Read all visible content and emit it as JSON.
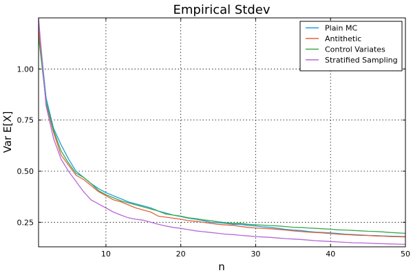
{
  "chart_data": {
    "type": "line",
    "title": "Empirical Stdev",
    "xlabel": "n",
    "ylabel": "Var E[X]",
    "xlim": [
      1,
      50
    ],
    "ylim": [
      0.13,
      1.25
    ],
    "xticks": [
      10,
      20,
      30,
      40,
      50
    ],
    "yticks": [
      0.25,
      0.5,
      0.75,
      1.0
    ],
    "xtick_labels": [
      "10",
      "20",
      "30",
      "40",
      "50"
    ],
    "ytick_labels": [
      "0.25",
      "0.50",
      "0.75",
      "1.00"
    ],
    "grid": true,
    "legend_position": "top-right",
    "x": [
      1,
      2,
      3,
      4,
      5,
      6,
      7,
      8,
      9,
      10,
      11,
      12,
      13,
      14,
      15,
      16,
      17,
      18,
      19,
      20,
      21,
      22,
      23,
      24,
      25,
      26,
      27,
      28,
      29,
      30,
      31,
      32,
      33,
      34,
      35,
      36,
      37,
      38,
      39,
      40,
      41,
      42,
      43,
      44,
      45,
      46,
      47,
      48,
      49,
      50
    ],
    "series": [
      {
        "name": "Plain MC",
        "color": "#1f9bd7",
        "values": [
          1.22,
          0.86,
          0.71,
          0.63,
          0.56,
          0.5,
          0.47,
          0.44,
          0.415,
          0.395,
          0.38,
          0.365,
          0.35,
          0.34,
          0.33,
          0.32,
          0.305,
          0.295,
          0.285,
          0.278,
          0.27,
          0.265,
          0.258,
          0.25,
          0.248,
          0.245,
          0.24,
          0.24,
          0.235,
          0.232,
          0.228,
          0.225,
          0.22,
          0.215,
          0.212,
          0.21,
          0.205,
          0.202,
          0.2,
          0.198,
          0.195,
          0.192,
          0.19,
          0.188,
          0.186,
          0.185,
          0.183,
          0.182,
          0.181,
          0.18
        ]
      },
      {
        "name": "Antithetic",
        "color": "#e2623b",
        "values": [
          1.2,
          0.83,
          0.69,
          0.58,
          0.53,
          0.48,
          0.46,
          0.43,
          0.4,
          0.38,
          0.36,
          0.35,
          0.335,
          0.32,
          0.31,
          0.3,
          0.28,
          0.275,
          0.27,
          0.265,
          0.258,
          0.255,
          0.25,
          0.245,
          0.24,
          0.237,
          0.235,
          0.23,
          0.225,
          0.222,
          0.22,
          0.218,
          0.215,
          0.212,
          0.208,
          0.205,
          0.202,
          0.2,
          0.198,
          0.195,
          0.192,
          0.19,
          0.188,
          0.186,
          0.185,
          0.183,
          0.182,
          0.18,
          0.179,
          0.178
        ]
      },
      {
        "name": "Control Variates",
        "color": "#3aa84a",
        "values": [
          1.16,
          0.84,
          0.7,
          0.6,
          0.54,
          0.49,
          0.47,
          0.44,
          0.405,
          0.385,
          0.37,
          0.355,
          0.345,
          0.335,
          0.325,
          0.315,
          0.305,
          0.29,
          0.285,
          0.28,
          0.272,
          0.268,
          0.262,
          0.258,
          0.252,
          0.248,
          0.245,
          0.245,
          0.24,
          0.238,
          0.236,
          0.234,
          0.232,
          0.229,
          0.226,
          0.225,
          0.222,
          0.22,
          0.218,
          0.216,
          0.213,
          0.212,
          0.21,
          0.208,
          0.206,
          0.205,
          0.203,
          0.2,
          0.198,
          0.196
        ]
      },
      {
        "name": "Stratified Sampling",
        "color": "#b866d6",
        "values": [
          1.25,
          0.82,
          0.66,
          0.56,
          0.5,
          0.45,
          0.4,
          0.36,
          0.34,
          0.32,
          0.3,
          0.285,
          0.272,
          0.265,
          0.26,
          0.25,
          0.24,
          0.232,
          0.225,
          0.22,
          0.214,
          0.208,
          0.204,
          0.2,
          0.196,
          0.192,
          0.19,
          0.186,
          0.183,
          0.18,
          0.178,
          0.176,
          0.173,
          0.17,
          0.168,
          0.166,
          0.163,
          0.16,
          0.158,
          0.156,
          0.154,
          0.152,
          0.15,
          0.149,
          0.148,
          0.146,
          0.145,
          0.144,
          0.143,
          0.142
        ]
      }
    ]
  }
}
